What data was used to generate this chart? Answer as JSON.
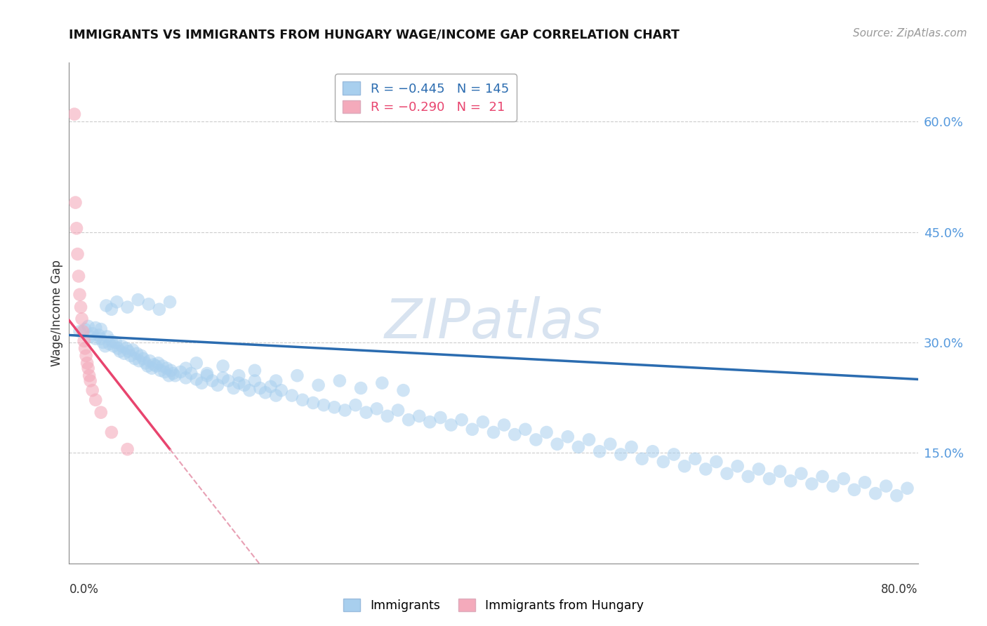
{
  "title": "IMMIGRANTS VS IMMIGRANTS FROM HUNGARY WAGE/INCOME GAP CORRELATION CHART",
  "source": "Source: ZipAtlas.com",
  "ylabel": "Wage/Income Gap",
  "ytick_labels": [
    "60.0%",
    "45.0%",
    "30.0%",
    "15.0%"
  ],
  "ytick_values": [
    0.6,
    0.45,
    0.3,
    0.15
  ],
  "xmin": 0.0,
  "xmax": 0.8,
  "ymin": 0.0,
  "ymax": 0.68,
  "blue_color": "#A8CFEE",
  "pink_color": "#F4AABB",
  "blue_line_color": "#2B6CB0",
  "pink_line_color": "#E8446E",
  "pink_dash_color": "#E8A0B4",
  "watermark_color": "#C8D8EA",
  "blue_scatter_x": [
    0.01,
    0.015,
    0.018,
    0.02,
    0.022,
    0.025,
    0.025,
    0.028,
    0.03,
    0.03,
    0.032,
    0.034,
    0.036,
    0.038,
    0.04,
    0.042,
    0.044,
    0.046,
    0.048,
    0.05,
    0.052,
    0.054,
    0.056,
    0.058,
    0.06,
    0.062,
    0.064,
    0.066,
    0.068,
    0.07,
    0.072,
    0.074,
    0.076,
    0.078,
    0.08,
    0.082,
    0.084,
    0.086,
    0.088,
    0.09,
    0.092,
    0.094,
    0.096,
    0.098,
    0.1,
    0.105,
    0.11,
    0.115,
    0.12,
    0.125,
    0.13,
    0.135,
    0.14,
    0.145,
    0.15,
    0.155,
    0.16,
    0.165,
    0.17,
    0.175,
    0.18,
    0.185,
    0.19,
    0.195,
    0.2,
    0.21,
    0.22,
    0.23,
    0.24,
    0.25,
    0.26,
    0.27,
    0.28,
    0.29,
    0.3,
    0.31,
    0.32,
    0.33,
    0.34,
    0.35,
    0.36,
    0.37,
    0.38,
    0.39,
    0.4,
    0.41,
    0.42,
    0.43,
    0.44,
    0.45,
    0.46,
    0.47,
    0.48,
    0.49,
    0.5,
    0.51,
    0.52,
    0.53,
    0.54,
    0.55,
    0.56,
    0.57,
    0.58,
    0.59,
    0.6,
    0.61,
    0.62,
    0.63,
    0.64,
    0.65,
    0.66,
    0.67,
    0.68,
    0.69,
    0.7,
    0.71,
    0.72,
    0.73,
    0.74,
    0.75,
    0.76,
    0.77,
    0.78,
    0.79,
    0.035,
    0.04,
    0.045,
    0.055,
    0.065,
    0.075,
    0.085,
    0.095,
    0.11,
    0.12,
    0.13,
    0.145,
    0.16,
    0.175,
    0.195,
    0.215,
    0.235,
    0.255,
    0.275,
    0.295,
    0.315
  ],
  "blue_scatter_y": [
    0.315,
    0.318,
    0.322,
    0.308,
    0.312,
    0.305,
    0.32,
    0.31,
    0.305,
    0.318,
    0.3,
    0.295,
    0.308,
    0.298,
    0.302,
    0.295,
    0.3,
    0.292,
    0.288,
    0.295,
    0.285,
    0.292,
    0.288,
    0.282,
    0.29,
    0.278,
    0.285,
    0.275,
    0.282,
    0.278,
    0.272,
    0.268,
    0.275,
    0.265,
    0.27,
    0.268,
    0.272,
    0.262,
    0.268,
    0.26,
    0.265,
    0.255,
    0.262,
    0.258,
    0.255,
    0.26,
    0.252,
    0.258,
    0.25,
    0.245,
    0.255,
    0.248,
    0.242,
    0.252,
    0.248,
    0.238,
    0.245,
    0.242,
    0.235,
    0.248,
    0.238,
    0.232,
    0.24,
    0.228,
    0.235,
    0.228,
    0.222,
    0.218,
    0.215,
    0.212,
    0.208,
    0.215,
    0.205,
    0.21,
    0.2,
    0.208,
    0.195,
    0.2,
    0.192,
    0.198,
    0.188,
    0.195,
    0.182,
    0.192,
    0.178,
    0.188,
    0.175,
    0.182,
    0.168,
    0.178,
    0.162,
    0.172,
    0.158,
    0.168,
    0.152,
    0.162,
    0.148,
    0.158,
    0.142,
    0.152,
    0.138,
    0.148,
    0.132,
    0.142,
    0.128,
    0.138,
    0.122,
    0.132,
    0.118,
    0.128,
    0.115,
    0.125,
    0.112,
    0.122,
    0.108,
    0.118,
    0.105,
    0.115,
    0.1,
    0.11,
    0.095,
    0.105,
    0.092,
    0.102,
    0.35,
    0.345,
    0.355,
    0.348,
    0.358,
    0.352,
    0.345,
    0.355,
    0.265,
    0.272,
    0.258,
    0.268,
    0.255,
    0.262,
    0.248,
    0.255,
    0.242,
    0.248,
    0.238,
    0.245,
    0.235
  ],
  "pink_scatter_x": [
    0.005,
    0.006,
    0.007,
    0.008,
    0.009,
    0.01,
    0.011,
    0.012,
    0.013,
    0.014,
    0.015,
    0.016,
    0.017,
    0.018,
    0.019,
    0.02,
    0.022,
    0.025,
    0.03,
    0.04,
    0.055
  ],
  "pink_scatter_y": [
    0.61,
    0.49,
    0.455,
    0.42,
    0.39,
    0.365,
    0.348,
    0.332,
    0.315,
    0.302,
    0.292,
    0.282,
    0.272,
    0.265,
    0.255,
    0.248,
    0.235,
    0.222,
    0.205,
    0.178,
    0.155
  ],
  "blue_line_x0": 0.0,
  "blue_line_x1": 0.8,
  "blue_line_y0": 0.31,
  "blue_line_y1": 0.25,
  "pink_line_solid_x0": 0.0,
  "pink_line_solid_x1": 0.095,
  "pink_line_y0": 0.33,
  "pink_line_y1": 0.155,
  "pink_line_dash_x0": 0.095,
  "pink_line_dash_x1": 0.2
}
